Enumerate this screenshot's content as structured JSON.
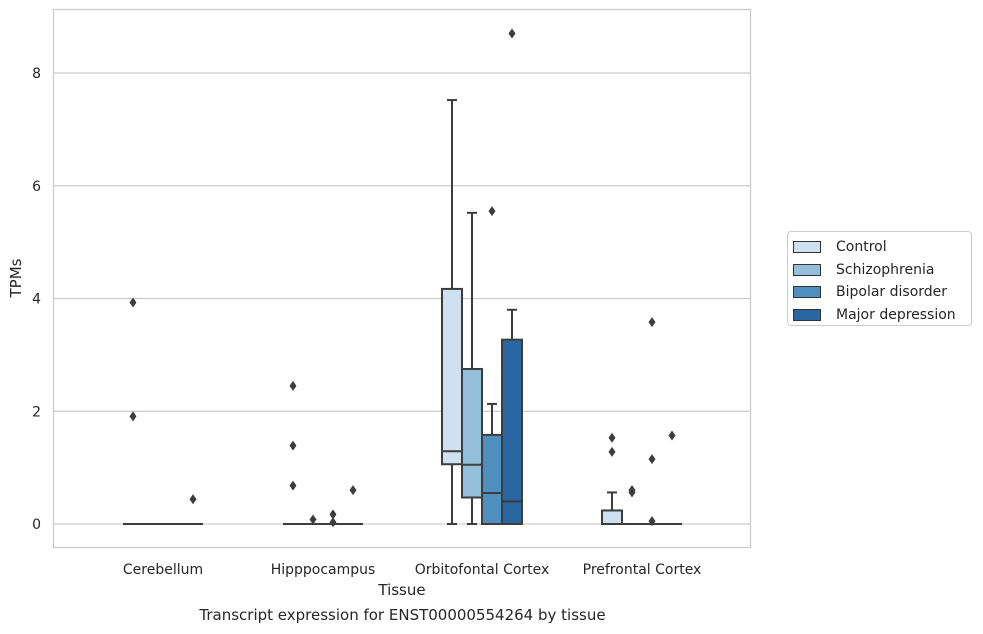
{
  "chart_data": {
    "type": "box",
    "title": "",
    "caption": "Transcript expression for ENST00000554264 by tissue",
    "xlabel": "Tissue",
    "ylabel": "TPMs",
    "ylim": [
      -0.42,
      9.2
    ],
    "yticks": [
      0,
      2,
      4,
      6,
      8
    ],
    "grid": true,
    "legend_position": "right",
    "categories": [
      "Cerebellum",
      "Hipppocampus",
      "Orbitofontal Cortex",
      "Prefrontal Cortex"
    ],
    "series": [
      {
        "name": "Control",
        "color": "#cfe0f0",
        "boxes": [
          {
            "q1": 0,
            "median": 0,
            "q3": 0,
            "whislo": 0,
            "whishi": 0,
            "fliers": [
              3.93,
              1.91
            ]
          },
          {
            "q1": 0,
            "median": 0,
            "q3": 0,
            "whislo": 0,
            "whishi": 0,
            "fliers": [
              2.45,
              1.39,
              0.68
            ]
          },
          {
            "q1": 1.06,
            "median": 1.29,
            "q3": 4.17,
            "whislo": 0,
            "whishi": 7.52,
            "fliers": []
          },
          {
            "q1": 0,
            "median": 0,
            "q3": 0.24,
            "whislo": 0,
            "whishi": 0.56,
            "fliers": [
              1.53,
              1.28
            ]
          }
        ]
      },
      {
        "name": "Schizophrenia",
        "color": "#94bfdb",
        "boxes": [
          {
            "q1": 0,
            "median": 0,
            "q3": 0,
            "whislo": 0,
            "whishi": 0,
            "fliers": []
          },
          {
            "q1": 0,
            "median": 0,
            "q3": 0,
            "whislo": 0,
            "whishi": 0,
            "fliers": [
              0.08
            ]
          },
          {
            "q1": 0.47,
            "median": 1.05,
            "q3": 2.75,
            "whislo": 0,
            "whishi": 5.52,
            "fliers": []
          },
          {
            "q1": 0,
            "median": 0,
            "q3": 0,
            "whislo": 0,
            "whishi": 0,
            "fliers": [
              0.6,
              0.56
            ]
          }
        ]
      },
      {
        "name": "Bipolar disorder",
        "color": "#4f8fc0",
        "boxes": [
          {
            "q1": 0,
            "median": 0,
            "q3": 0,
            "whislo": 0,
            "whishi": 0,
            "fliers": []
          },
          {
            "q1": 0,
            "median": 0,
            "q3": 0,
            "whislo": 0,
            "whishi": 0,
            "fliers": [
              0.17,
              0.03
            ]
          },
          {
            "q1": 0,
            "median": 0.55,
            "q3": 1.58,
            "whislo": 0,
            "whishi": 2.13,
            "fliers": [
              5.55
            ]
          },
          {
            "q1": 0,
            "median": 0,
            "q3": 0,
            "whislo": 0,
            "whishi": 0,
            "fliers": [
              3.58,
              1.15,
              0.05
            ]
          }
        ]
      },
      {
        "name": "Major depression",
        "color": "#2a67a2",
        "boxes": [
          {
            "q1": 0,
            "median": 0,
            "q3": 0,
            "whislo": 0,
            "whishi": 0,
            "fliers": [
              0.44
            ]
          },
          {
            "q1": 0,
            "median": 0,
            "q3": 0,
            "whislo": 0,
            "whishi": 0,
            "fliers": [
              0.6
            ]
          },
          {
            "q1": 0,
            "median": 0.4,
            "q3": 3.27,
            "whislo": 0,
            "whishi": 3.8,
            "fliers": [
              8.7
            ]
          },
          {
            "q1": 0,
            "median": 0,
            "q3": 0,
            "whislo": 0,
            "whishi": 0,
            "fliers": [
              1.57
            ]
          }
        ]
      }
    ]
  }
}
